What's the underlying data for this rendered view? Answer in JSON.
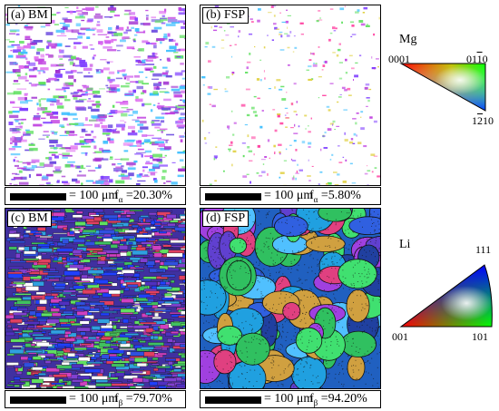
{
  "panels": [
    {
      "label": "(a) BM",
      "scale_text": "= 100 μm",
      "fraction_symbol": "f",
      "fraction_sub": "α",
      "fraction_value": "=20.30%"
    },
    {
      "label": "(b) FSP",
      "scale_text": "= 100 μm",
      "fraction_symbol": "f",
      "fraction_sub": "α",
      "fraction_value": "=5.80%"
    },
    {
      "label": "(c) BM",
      "scale_text": "= 100 μm",
      "fraction_symbol": "f",
      "fraction_sub": "β",
      "fraction_value": "=79.70%"
    },
    {
      "label": "(d) FSP",
      "scale_text": "= 100 μm",
      "fraction_symbol": "f",
      "fraction_sub": "β",
      "fraction_value": "=94.20%"
    }
  ],
  "legend_mg": {
    "title": "Mg",
    "corner_basal": "0001",
    "corner_prism1_digits": [
      "0",
      "1",
      "1",
      "0"
    ],
    "corner_prism2_digits": [
      "1",
      "2",
      "1",
      "0"
    ]
  },
  "legend_li": {
    "title": "Li",
    "corner_top": "111",
    "corner_left": "001",
    "corner_right": "101"
  },
  "colors": {
    "red": "#ff0000",
    "green": "#00ff00",
    "blue": "#0000ff",
    "magenta": "#c040e0",
    "purple": "#8020c0",
    "cyan": "#00c0c0"
  }
}
